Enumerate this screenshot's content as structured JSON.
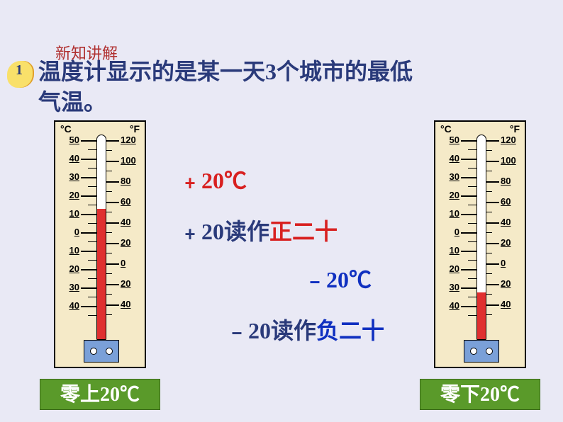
{
  "header": {
    "label": "新知讲解",
    "badge": "1"
  },
  "title": {
    "line1": "温度计显示的是某一天3个城市的最低",
    "line2": "气温。"
  },
  "thermometer": {
    "unit_c": "°C",
    "unit_f": "°F",
    "c_scale": [
      "50",
      "40",
      "30",
      "20",
      "10",
      "0",
      "10",
      "20",
      "30",
      "40"
    ],
    "f_scale": [
      "120",
      "100",
      "80",
      "60",
      "40",
      "20",
      "0",
      "20",
      "40"
    ],
    "left": {
      "fill_pct": 64,
      "caption": "零上20℃"
    },
    "right": {
      "fill_pct": 23,
      "caption": "零下20℃"
    },
    "colors": {
      "body": "#f5eac8",
      "mercury": "#e03030",
      "bulb_box": "#7aa0d8"
    }
  },
  "annotations": {
    "pos20c": "﹢20℃",
    "pos20_read": {
      "pre": "﹢20读作",
      "val": "正二十"
    },
    "neg20c": "﹣20℃",
    "neg20_read": {
      "pre": "﹣20读作",
      "val": "负二十"
    }
  },
  "styling": {
    "page_bg": "#e9e9f5",
    "header_color": "#b03030",
    "navy": "#2a3a7a",
    "red": "#d82020",
    "blue": "#1030c0",
    "caption_bg": "#5a9a2a",
    "title_fontsize": 32,
    "annotation_fontsize": 32
  }
}
